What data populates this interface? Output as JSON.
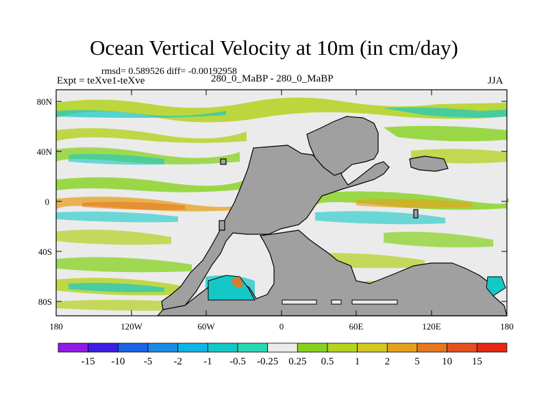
{
  "title": "Ocean Vertical Velocity at 10m (in cm/day)",
  "stats": "rmsd= 0.589526 diff= -0.00192958",
  "expt": "Expt = teXve1-teXve",
  "subtitle": "280_0_MaBP - 280_0_MaBP",
  "season": "JJA",
  "land_color": "#a0a0a0",
  "background_color": "#ffffff",
  "lat_labels": [
    "80N",
    "40N",
    "0",
    "40S",
    "80S"
  ],
  "lon_labels": [
    "180",
    "120W",
    "60W",
    "0",
    "60E",
    "120E",
    "180"
  ],
  "colorbar": {
    "labels": [
      "-15",
      "-10",
      "-5",
      "-2",
      "-1",
      "-0.5",
      "-0.25",
      "0.25",
      "0.5",
      "1",
      "2",
      "5",
      "10",
      "15"
    ],
    "colors": [
      "#9419e6",
      "#3c1ee6",
      "#1a64e6",
      "#1a8ce6",
      "#10b4e6",
      "#15c8c8",
      "#28d7b4",
      "#ebebeb",
      "#86d21e",
      "#b4d21e",
      "#d2c81e",
      "#e6a01e",
      "#e6781e",
      "#e6501e",
      "#e62814"
    ]
  }
}
